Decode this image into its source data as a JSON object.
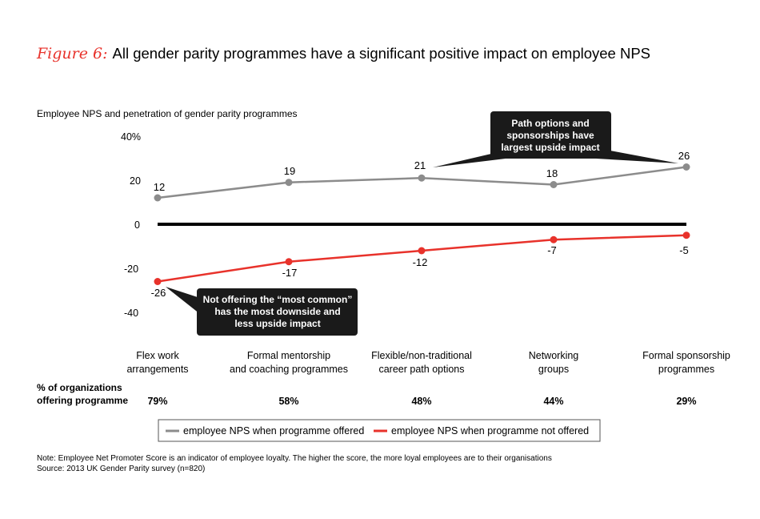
{
  "title": {
    "prefix": "Figure 6:",
    "text": "All gender parity programmes have a significant positive impact on employee NPS"
  },
  "colors": {
    "offered": "#8c8c8c",
    "not_offered": "#e8322b",
    "title_accent": "#e8322b",
    "zero_line": "#000000",
    "callout_bg": "#1a1a1a"
  },
  "chart_data": {
    "type": "line",
    "subtitle": "Employee NPS and penetration of gender parity programmes",
    "ylim": [
      -40,
      40
    ],
    "yticks": [
      {
        "value": 40,
        "label": "40%"
      },
      {
        "value": 20,
        "label": "20"
      },
      {
        "value": 0,
        "label": "0"
      },
      {
        "value": -20,
        "label": "-20"
      },
      {
        "value": -40,
        "label": "-40"
      }
    ],
    "categories": [
      [
        "Flex work",
        "arrangements"
      ],
      [
        "Formal mentorship",
        "and coaching programmes"
      ],
      [
        "Flexible/non-traditional",
        "career path options"
      ],
      [
        "Networking",
        "groups"
      ],
      [
        "Formal sponsorship",
        "programmes"
      ]
    ],
    "series": [
      {
        "name": "employee NPS when programme offered",
        "values": [
          12,
          19,
          21,
          18,
          26
        ],
        "labels": [
          "12",
          "19",
          "21",
          "18",
          "26"
        ]
      },
      {
        "name": "employee NPS when programme not offered",
        "values": [
          -26,
          -17,
          -12,
          -7,
          -5
        ],
        "labels": [
          "-26",
          "-17",
          "-12",
          "-7",
          "-5"
        ]
      }
    ],
    "penetration_label": [
      "% of organizations",
      "offering programme"
    ],
    "penetration": [
      "79%",
      "58%",
      "48%",
      "44%",
      "29%"
    ],
    "annotations": [
      {
        "lines": [
          "Path options and",
          "sponsorships have",
          "largest upside impact"
        ]
      },
      {
        "lines": [
          "Not offering the “most common”",
          "has the most downside and",
          "less upside impact"
        ]
      }
    ]
  },
  "notes": [
    "Note: Employee Net Promoter Score is an indicator of employee loyalty. The higher the score, the more loyal employees are to their organisations",
    "Source: 2013 UK Gender Parity survey (n=820)"
  ]
}
